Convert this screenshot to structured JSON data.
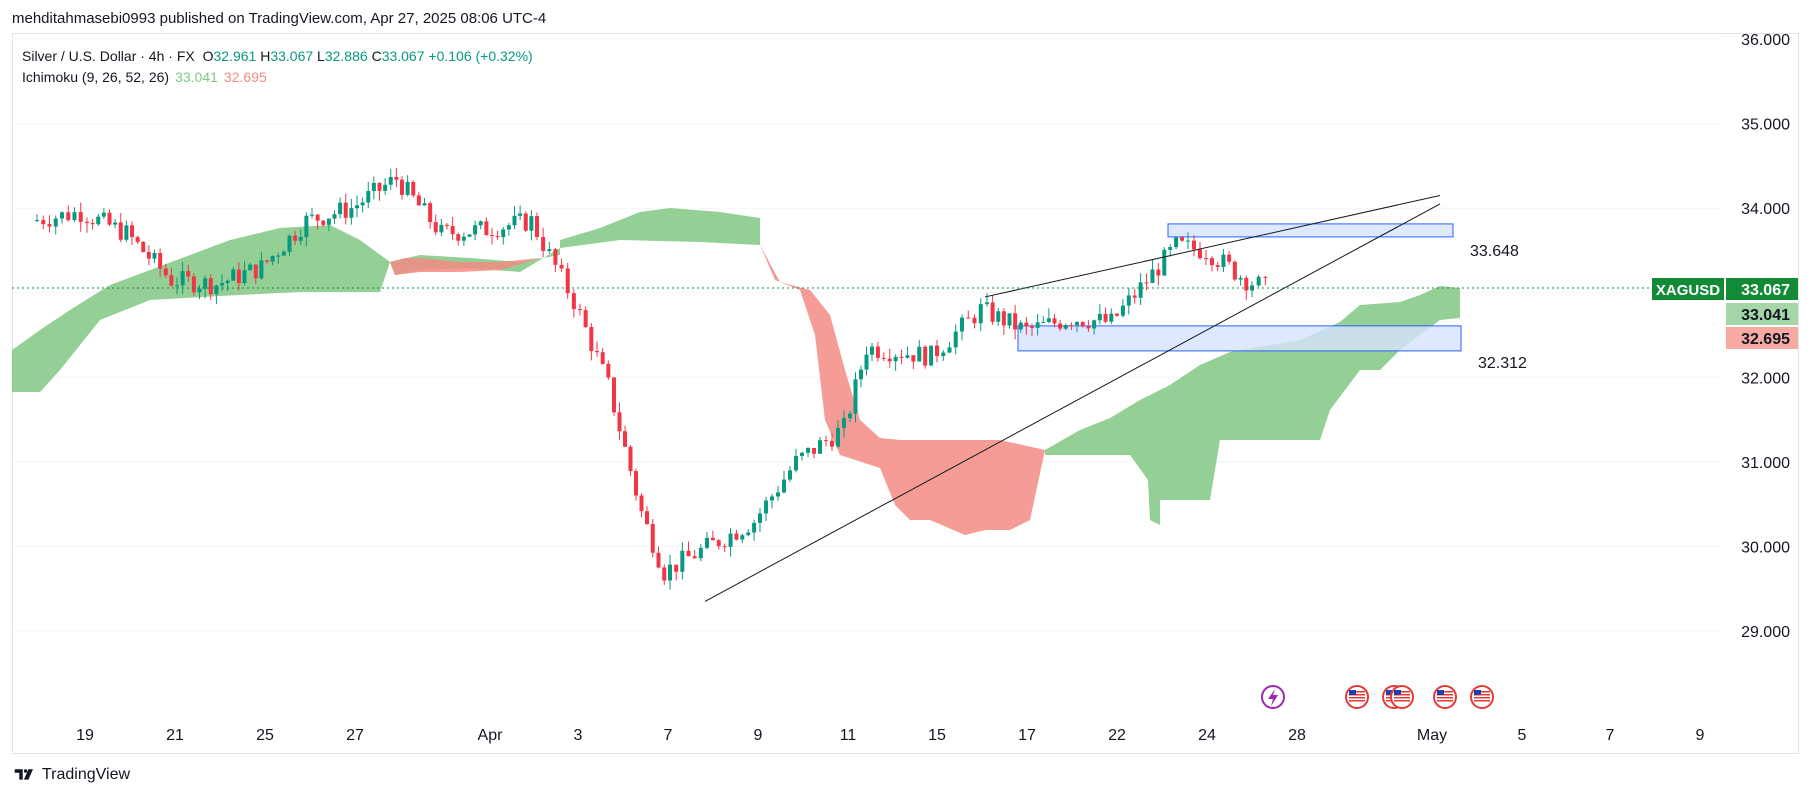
{
  "published_by": "mehditahmasebi0993 published on TradingView.com, Apr 27, 2025 08:06 UTC-4",
  "legend": {
    "symbol": "Silver / U.S. Dollar · 4h · FX",
    "o_label": "O",
    "o": "32.961",
    "h_label": "H",
    "h": "33.067",
    "l_label": "L",
    "l": "32.886",
    "c_label": "C",
    "c": "33.067",
    "change": "+0.106 (+0.32%)",
    "indicator": "Ichimoku (9, 26, 52, 26)",
    "ichimoku_a": "33.041",
    "ichimoku_b": "32.695"
  },
  "price_labels": {
    "ticker": "XAGUSD",
    "last": "33.067",
    "span_a": "33.041",
    "span_b": "32.695",
    "zone_top_label": "33.648",
    "zone_bottom_label": "32.312"
  },
  "footer": {
    "brand": "TradingView"
  },
  "colors": {
    "up": "#089981",
    "down": "#f23645",
    "cloud_bull": "#81c784",
    "cloud_bear": "#f28b82",
    "zone_fill": "#d6e4ff",
    "zone_border": "#2962ff",
    "ticker_bg": "#138a36",
    "span_a_bg": "#a5d6a7",
    "span_b_bg": "#f7a9a3"
  },
  "chart_data": {
    "type": "candlestick",
    "title": "Silver / U.S. Dollar · 4h · FX",
    "y_ticks": [
      36,
      35,
      34,
      33,
      32,
      31,
      30,
      29
    ],
    "ylim": [
      28,
      36.1
    ],
    "x_ticks": [
      "19",
      "21",
      "25",
      "27",
      "Apr",
      "3",
      "7",
      "9",
      "11",
      "15",
      "17",
      "22",
      "24",
      "28",
      "May",
      "5",
      "7",
      "9"
    ],
    "price_path": [
      [
        "Mar 18",
        33.85
      ],
      [
        "Mar 19",
        33.95
      ],
      [
        "Mar 20",
        33.7
      ],
      [
        "Mar 21",
        33.15
      ],
      [
        "Mar 24",
        33.1
      ],
      [
        "Mar 25",
        33.3
      ],
      [
        "Mar 26",
        33.85
      ],
      [
        "Mar 27",
        34.0
      ],
      [
        "Mar 28",
        34.35
      ],
      [
        "Mar 31",
        33.7
      ],
      [
        "Apr 1",
        33.75
      ],
      [
        "Apr 2",
        33.85
      ],
      [
        "Apr 3",
        32.9
      ],
      [
        "Apr 4",
        31.9
      ],
      [
        "Apr 6",
        30.4
      ],
      [
        "Apr 7",
        29.7
      ],
      [
        "Apr 8",
        29.95
      ],
      [
        "Apr 9",
        30.3
      ],
      [
        "Apr 10",
        31.0
      ],
      [
        "Apr 11",
        31.4
      ],
      [
        "Apr 14",
        32.35
      ],
      [
        "Apr 15",
        32.25
      ],
      [
        "Apr 16",
        32.8
      ],
      [
        "Apr 17",
        32.55
      ],
      [
        "Apr 21",
        32.7
      ],
      [
        "Apr 22",
        32.65
      ],
      [
        "Apr 23",
        33.55
      ],
      [
        "Apr 24",
        33.5
      ],
      [
        "Apr 25",
        33.15
      ],
      [
        "Apr 26",
        33.067
      ]
    ],
    "last_close": 33.067,
    "ichimoku": {
      "params": [
        9,
        26,
        52,
        26
      ],
      "span_a": 33.041,
      "span_b": 32.695
    },
    "resistance_zone": {
      "price": 33.648
    },
    "support_zone": {
      "price": 32.312
    },
    "trendlines": [
      {
        "from": [
          "Apr 8",
          29.35
        ],
        "to": [
          "Apr 30",
          34.05
        ]
      },
      {
        "from": [
          "Apr 16",
          32.95
        ],
        "to": [
          "Apr 30",
          34.15
        ]
      }
    ]
  }
}
